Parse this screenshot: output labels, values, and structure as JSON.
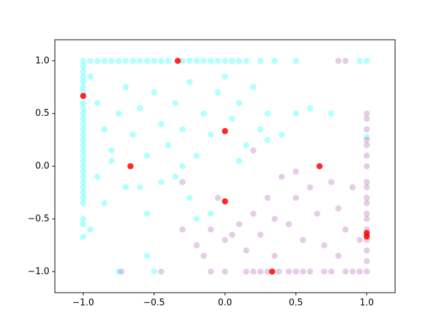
{
  "chart_data": {
    "type": "scatter",
    "xlim": [
      -1.2,
      1.2
    ],
    "ylim": [
      -1.2,
      1.2
    ],
    "xticks": [
      {
        "value": -1,
        "label": "−1.0"
      },
      {
        "value": -0.5,
        "label": "−0.5"
      },
      {
        "value": 0,
        "label": "0.0"
      },
      {
        "value": 0.5,
        "label": "0.5"
      },
      {
        "value": 1,
        "label": "1.0"
      }
    ],
    "yticks": [
      {
        "value": -1,
        "label": "−1.0"
      },
      {
        "value": -0.5,
        "label": "−0.5"
      },
      {
        "value": 0,
        "label": "0.0"
      },
      {
        "value": 0.5,
        "label": "0.5"
      },
      {
        "value": 1,
        "label": "1.0"
      }
    ],
    "series": [
      {
        "color": "#00ffff",
        "x": [
          -1,
          -1,
          -1,
          -1,
          -1,
          -1,
          -1,
          -1,
          -1,
          -1,
          -1,
          -1,
          -1,
          -1,
          -1,
          -1,
          -1,
          -1,
          -1,
          -1,
          -1,
          -1,
          -1,
          -1,
          -1,
          -1,
          -1,
          -1,
          -1,
          -1,
          -0.95,
          -0.9,
          -0.85,
          -0.8,
          -0.75,
          -0.7,
          -0.65,
          -0.6,
          -0.55,
          -0.5,
          -0.45,
          -0.4,
          -0.3,
          -0.25,
          -0.2,
          -0.15,
          -0.1,
          -0.05,
          0,
          0.05,
          0.1,
          0.15,
          0.25,
          0.35,
          0.5,
          0.95,
          -0.95,
          -0.9,
          -0.85,
          -0.8,
          -0.75,
          -0.7,
          -0.65,
          -0.6,
          -0.55,
          -0.5,
          -0.45,
          -0.4,
          -0.35,
          -0.3,
          -0.25,
          -0.2,
          -0.15,
          -0.1,
          -0.05,
          0,
          0.05,
          0.1,
          0.15,
          0.2,
          0.25,
          0.3,
          0.4,
          0.5,
          0.6,
          0.75,
          -0.9,
          -0.85,
          -0.95,
          -0.7,
          -0.6,
          -0.55,
          -0.45,
          -0.35,
          -0.3,
          -0.25,
          -0.2,
          -0.1,
          -0.55,
          -0.75,
          -0.5,
          0.1,
          0.3,
          -0.8,
          1,
          1
        ],
        "values": [
          1,
          0.95,
          0.9,
          0.85,
          0.8,
          0.75,
          0.7,
          0.6,
          0.55,
          0.5,
          0.45,
          0.4,
          0.35,
          0.3,
          0.25,
          0.2,
          0.15,
          0.1,
          0.05,
          0,
          -0.05,
          -0.1,
          -0.15,
          -0.2,
          -0.25,
          -0.3,
          -0.35,
          -0.5,
          -0.55,
          -0.67,
          1,
          1,
          1,
          1,
          1,
          1,
          1,
          1,
          1,
          1,
          1,
          1,
          1,
          1,
          1,
          1,
          1,
          1,
          1,
          1,
          1,
          1,
          1,
          1,
          1,
          1,
          0.85,
          0.6,
          0.35,
          0.15,
          0.5,
          0.75,
          0.3,
          0.55,
          0.1,
          0.7,
          0.4,
          0.2,
          0.6,
          0.35,
          0.8,
          0.1,
          0.5,
          0.3,
          0.7,
          0.85,
          0.45,
          0.6,
          0.2,
          0.75,
          0.35,
          0.5,
          0.3,
          0.5,
          0.55,
          0.5,
          -0.1,
          -0.35,
          -0.6,
          -0.2,
          -0.2,
          -0.45,
          -0.15,
          -0.1,
          0,
          -0.3,
          -0.5,
          -0.45,
          -0.85,
          -1,
          -1,
          0.05,
          0.25,
          0.05,
          0.28,
          1
        ]
      },
      {
        "color": "#800080",
        "x": [
          1,
          1,
          1,
          1,
          1,
          1,
          1,
          1,
          1,
          1,
          1,
          1,
          1,
          1,
          1,
          1,
          1,
          1,
          -0.73,
          -0.45,
          -0.1,
          0,
          0.15,
          0.2,
          0.25,
          0.3,
          0.38,
          0.45,
          0.5,
          0.55,
          0.6,
          0.7,
          0.75,
          0.85,
          0.9,
          0.95,
          -0.3,
          -0.2,
          -0.15,
          -0.1,
          0,
          0.05,
          0.1,
          0.15,
          0.2,
          0.25,
          0.3,
          0.35,
          0.4,
          0.45,
          0.5,
          0.55,
          0.6,
          0.65,
          0.7,
          0.75,
          0.8,
          0.85,
          0.9,
          0.95,
          0.8,
          0.5,
          -0.3,
          0.2,
          0.85,
          0.8,
          -0.05,
          0.35
        ],
        "values": [
          0.5,
          0.45,
          0.35,
          0.25,
          0.2,
          0.1,
          0,
          -0.15,
          -0.2,
          -0.3,
          -0.35,
          -0.45,
          -0.5,
          -0.6,
          -0.7,
          -0.8,
          -0.9,
          -1,
          -1,
          -1,
          -1,
          -1,
          -1,
          -1,
          -1,
          -1,
          -1,
          -1,
          -1,
          -1,
          -1,
          -1,
          -1,
          -1,
          -1,
          -1,
          -0.6,
          -0.75,
          -0.85,
          -0.6,
          -0.7,
          -0.65,
          -0.55,
          -0.8,
          -0.45,
          -0.65,
          -0.3,
          -0.5,
          -0.1,
          -0.55,
          -0.3,
          -0.7,
          -0.2,
          -0.45,
          -0.75,
          -0.15,
          -0.4,
          -0.6,
          -0.2,
          -0.7,
          -0.85,
          -0.05,
          -0.15,
          0.15,
          1,
          1,
          -0.3,
          -0.85
        ]
      },
      {
        "color": "#ff0000",
        "x": [
          -0.333,
          -1,
          0,
          -0.667,
          0.667,
          0,
          0.333,
          1,
          1
        ],
        "values": [
          1,
          0.667,
          0.333,
          0,
          0,
          -0.333,
          -1,
          -0.667,
          -0.633
        ]
      }
    ]
  }
}
